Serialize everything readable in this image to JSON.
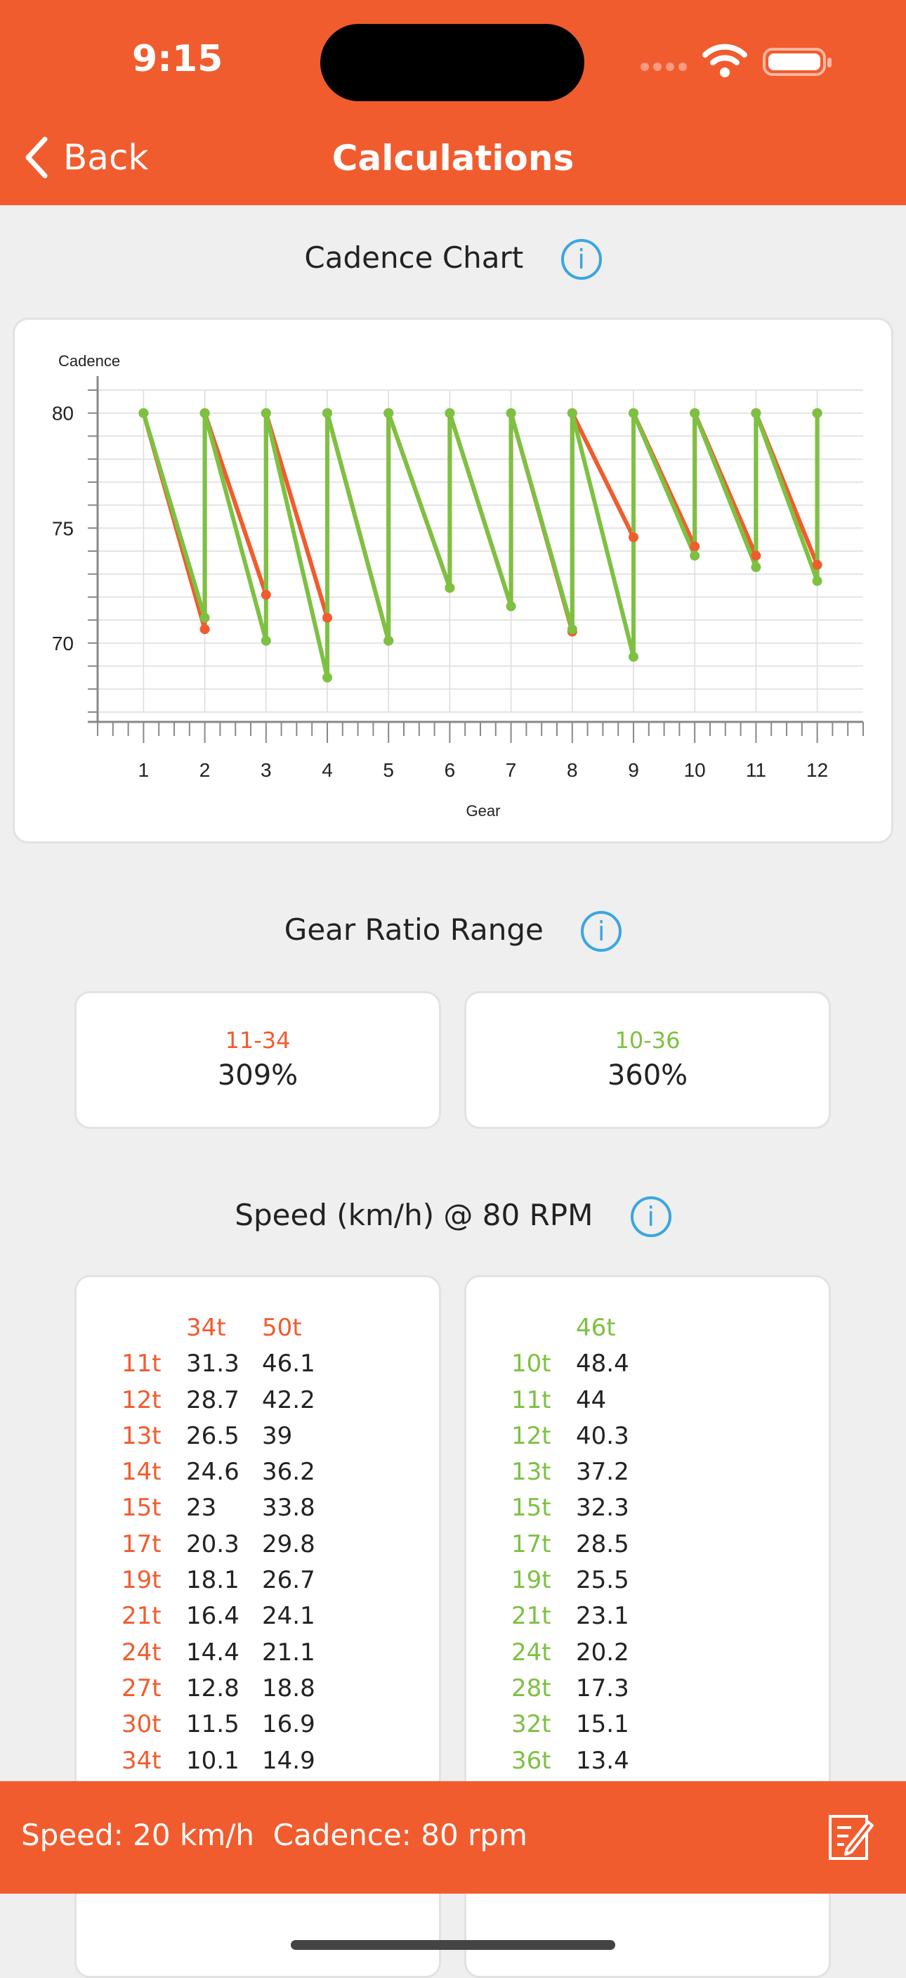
{
  "status_bar": {
    "time": "9:15"
  },
  "nav": {
    "back_label": "Back",
    "title": "Calculations"
  },
  "cadence_section": {
    "title": "Cadence Chart"
  },
  "chart_data": {
    "type": "line",
    "xlabel": "Gear",
    "ylabel": "Cadence",
    "x": [
      1,
      2,
      3,
      4,
      5,
      6,
      7,
      8,
      9,
      10,
      11,
      12
    ],
    "ylim": [
      67,
      81
    ],
    "yticks": [
      70,
      75,
      80
    ],
    "grid": true,
    "colors": {
      "series_a": "#f15c2e",
      "series_b": "#7dc142"
    },
    "series": [
      {
        "color": "#f15c2e",
        "segments": [
          [
            1,
            80,
            2,
            70.6
          ],
          [
            2,
            80,
            3,
            72.1
          ],
          [
            3,
            80,
            4,
            71.1
          ],
          [
            4,
            80,
            5,
            70.1
          ],
          [
            5,
            80,
            6,
            72.4
          ],
          [
            6,
            80,
            7,
            71.6
          ],
          [
            7,
            80,
            8,
            70.5
          ],
          [
            8,
            80,
            9,
            74.6
          ],
          [
            9,
            80,
            10,
            74.2
          ],
          [
            10,
            80,
            11,
            73.8
          ],
          [
            11,
            80,
            12,
            73.4
          ]
        ]
      },
      {
        "color": "#7dc142",
        "segments": [
          [
            1,
            80,
            2,
            71.1
          ],
          [
            2,
            80,
            3,
            70.1
          ],
          [
            3,
            80,
            4,
            68.5
          ],
          [
            4,
            80,
            5,
            70.1
          ],
          [
            5,
            80,
            6,
            72.4
          ],
          [
            6,
            80,
            7,
            71.6
          ],
          [
            7,
            80,
            8,
            70.6
          ],
          [
            8,
            80,
            9,
            69.4
          ],
          [
            9,
            80,
            10,
            73.8
          ],
          [
            10,
            80,
            11,
            73.3
          ],
          [
            11,
            80,
            12,
            72.7
          ]
        ]
      }
    ]
  },
  "ratio_section": {
    "title": "Gear Ratio Range",
    "cards": [
      {
        "label": "11-34",
        "value": "309%",
        "color": "#f15c2e"
      },
      {
        "label": "10-36",
        "value": "360%",
        "color": "#7dc142"
      }
    ]
  },
  "speed_section": {
    "title": "Speed (km/h) @ 80 RPM",
    "left": {
      "chainrings": [
        "34t",
        "50t"
      ],
      "cogs": [
        "11t",
        "12t",
        "13t",
        "14t",
        "15t",
        "17t",
        "19t",
        "21t",
        "24t",
        "27t",
        "30t",
        "34t"
      ],
      "values": [
        [
          "31.3",
          "46.1"
        ],
        [
          "28.7",
          "42.2"
        ],
        [
          "26.5",
          "39"
        ],
        [
          "24.6",
          "36.2"
        ],
        [
          "23",
          "33.8"
        ],
        [
          "20.3",
          "29.8"
        ],
        [
          "18.1",
          "26.7"
        ],
        [
          "16.4",
          "24.1"
        ],
        [
          "14.4",
          "21.1"
        ],
        [
          "12.8",
          "18.8"
        ],
        [
          "11.5",
          "16.9"
        ],
        [
          "10.1",
          "14.9"
        ]
      ]
    },
    "right": {
      "chainrings": [
        "46t"
      ],
      "cogs": [
        "10t",
        "11t",
        "12t",
        "13t",
        "15t",
        "17t",
        "19t",
        "21t",
        "24t",
        "28t",
        "32t",
        "36t"
      ],
      "values": [
        [
          "48.4"
        ],
        [
          "44"
        ],
        [
          "40.3"
        ],
        [
          "37.2"
        ],
        [
          "32.3"
        ],
        [
          "28.5"
        ],
        [
          "25.5"
        ],
        [
          "23.1"
        ],
        [
          "20.2"
        ],
        [
          "17.3"
        ],
        [
          "15.1"
        ],
        [
          "13.4"
        ]
      ]
    }
  },
  "bottom_bar": {
    "text": "Speed: 20 km/h  Cadence: 80 rpm"
  },
  "icons": {
    "back": "chevron-left-icon",
    "info": "info-icon",
    "edit": "edit-note-icon",
    "wifi": "wifi-icon",
    "battery": "battery-icon"
  }
}
